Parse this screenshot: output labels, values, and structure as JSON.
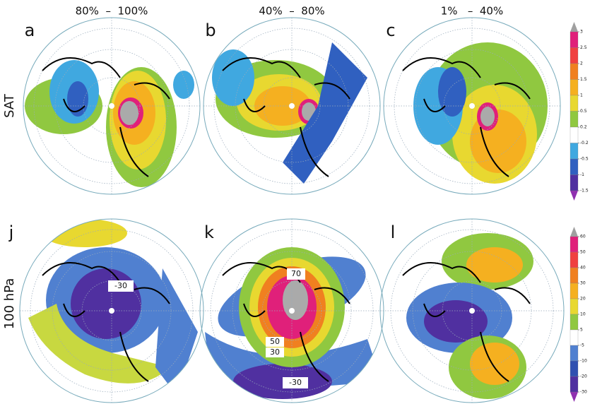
{
  "columns": [
    "80%  –  100%",
    "40%  –  80%",
    "1%   –  40%"
  ],
  "rows": [
    "SAT",
    "100 hPa"
  ],
  "panels": [
    "a",
    "b",
    "c",
    "j",
    "k",
    "l"
  ],
  "contour_labels": [
    "-30",
    "70",
    "50",
    "30",
    "-30"
  ],
  "colorbars": [
    {
      "levels": [
        3,
        2.5,
        2,
        1.5,
        1,
        0.5,
        0.2,
        -0.2,
        -0.5,
        -1,
        -1.5
      ],
      "colors": [
        "#e0207a",
        "#f04040",
        "#f08020",
        "#f5b020",
        "#e8d830",
        "#90c840",
        "#ffffff",
        "#40a8e0",
        "#3060c0",
        "#5030a0"
      ],
      "over_color": "#a0a0a0",
      "under_color": "#9030b0"
    },
    {
      "levels": [
        60,
        50,
        40,
        30,
        20,
        10,
        5,
        -5,
        -10,
        -20,
        -30
      ],
      "colors": [
        "#e0207a",
        "#f04040",
        "#f08020",
        "#f5b020",
        "#e8d830",
        "#90c840",
        "#ffffff",
        "#5080d0",
        "#3050b0",
        "#5030a0"
      ],
      "over_color": "#a0a0a0",
      "under_color": "#9030b0"
    }
  ]
}
